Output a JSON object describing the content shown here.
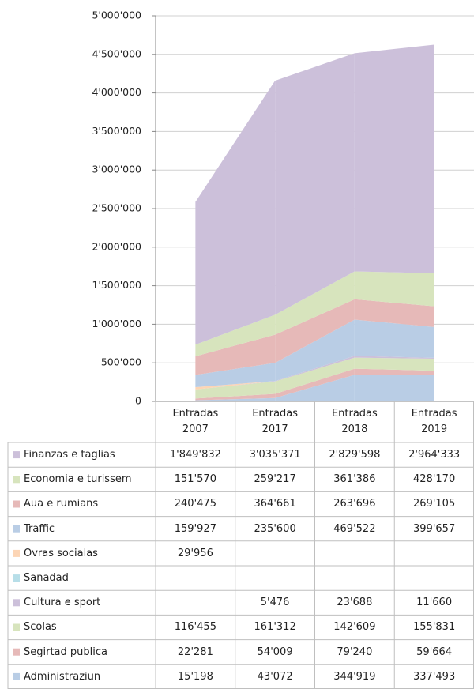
{
  "chart_data": {
    "type": "stacked_area",
    "categories": [
      "Entradas 2007",
      "Entradas 2017",
      "Entradas 2018",
      "Entradas 2019"
    ],
    "ylim": [
      0,
      5000000
    ],
    "yticks": [
      {
        "value": 0,
        "label": "0"
      },
      {
        "value": 500000,
        "label": "500'000"
      },
      {
        "value": 1000000,
        "label": "1'000'000"
      },
      {
        "value": 1500000,
        "label": "1'500'000"
      },
      {
        "value": 2000000,
        "label": "2'000'000"
      },
      {
        "value": 2500000,
        "label": "2'500'000"
      },
      {
        "value": 3000000,
        "label": "3'000'000"
      },
      {
        "value": 3500000,
        "label": "3'500'000"
      },
      {
        "value": 4000000,
        "label": "4'000'000"
      },
      {
        "value": 4500000,
        "label": "4'500'000"
      },
      {
        "value": 5000000,
        "label": "5'000'000"
      }
    ],
    "grid": true,
    "series": [
      {
        "name": "Finanzas e taglias",
        "color": "#ccc0da",
        "values": [
          1849832,
          3035371,
          2829598,
          2964333
        ],
        "value_labels": [
          "1'849'832",
          "3'035'371",
          "2'829'598",
          "2'964'333"
        ]
      },
      {
        "name": "Economia e turissem",
        "color": "#d7e4bd",
        "values": [
          151570,
          259217,
          361386,
          428170
        ],
        "value_labels": [
          "151'570",
          "259'217",
          "361'386",
          "428'170"
        ]
      },
      {
        "name": "Aua e rumians",
        "color": "#e6b9b8",
        "values": [
          240475,
          364661,
          263696,
          269105
        ],
        "value_labels": [
          "240'475",
          "364'661",
          "263'696",
          "269'105"
        ]
      },
      {
        "name": "Traffic",
        "color": "#b9cde5",
        "values": [
          159927,
          235600,
          469522,
          399657
        ],
        "value_labels": [
          "159'927",
          "235'600",
          "469'522",
          "399'657"
        ]
      },
      {
        "name": "Ovras socialas",
        "color": "#fcd5b5",
        "values": [
          29956,
          null,
          null,
          null
        ],
        "value_labels": [
          "29'956",
          null,
          null,
          null
        ]
      },
      {
        "name": "Sanadad",
        "color": "#b7dee8",
        "values": [
          null,
          null,
          null,
          null
        ],
        "value_labels": [
          null,
          null,
          null,
          null
        ]
      },
      {
        "name": "Cultura e sport",
        "color": "#ccc0da",
        "values": [
          null,
          5476,
          23688,
          11660
        ],
        "value_labels": [
          null,
          "5'476",
          "23'688",
          "11'660"
        ]
      },
      {
        "name": "Scolas",
        "color": "#d7e4bd",
        "values": [
          116455,
          161312,
          142609,
          155831
        ],
        "value_labels": [
          "116'455",
          "161'312",
          "142'609",
          "155'831"
        ]
      },
      {
        "name": "Segirtad publica",
        "color": "#e6b9b8",
        "values": [
          22281,
          54009,
          79240,
          59664
        ],
        "value_labels": [
          "22'281",
          "54'009",
          "79'240",
          "59'664"
        ]
      },
      {
        "name": "Administraziun",
        "color": "#b9cde5",
        "values": [
          15198,
          43072,
          344919,
          337493
        ],
        "value_labels": [
          "15'198",
          "43'072",
          "344'919",
          "337'493"
        ]
      }
    ]
  }
}
